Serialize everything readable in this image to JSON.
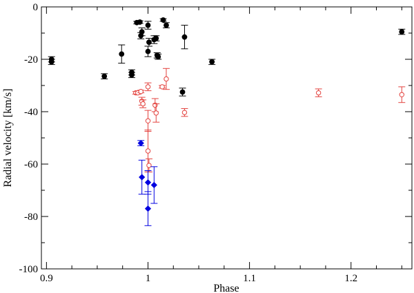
{
  "chart_data": {
    "type": "scatter",
    "title": "",
    "xlabel": "Phase",
    "ylabel": "Radial velocity [km/s]",
    "xlim": [
      0.895,
      1.26
    ],
    "ylim": [
      -100,
      0
    ],
    "xticks": [
      0.9,
      1,
      1.1,
      1.2
    ],
    "xtick_labels": [
      "0.9",
      "1",
      "1.1",
      "1.2"
    ],
    "xminor": 0.025,
    "yticks": [
      -100,
      -80,
      -60,
      -40,
      -20,
      0
    ],
    "ytick_labels": [
      "-100",
      "-80",
      "-60",
      "-40",
      "-20",
      "0"
    ],
    "yminor": 10,
    "grid": false,
    "legend": false,
    "series": [
      {
        "marker": "filled-circle",
        "color": "#000000",
        "points": [
          {
            "x": 0.905,
            "y": -20.0,
            "err": 1.0
          },
          {
            "x": 0.905,
            "y": -21.0,
            "err": 1.0
          },
          {
            "x": 0.957,
            "y": -26.5,
            "err": 1.0
          },
          {
            "x": 0.974,
            "y": -18.0,
            "err": 3.5
          },
          {
            "x": 0.984,
            "y": -25.0,
            "err": 1.0
          },
          {
            "x": 0.984,
            "y": -26.0,
            "err": 1.0
          },
          {
            "x": 0.989,
            "y": -6.0,
            "err": 0.5
          },
          {
            "x": 0.992,
            "y": -5.8,
            "err": 0.5
          },
          {
            "x": 0.993,
            "y": -11.0,
            "err": 1.2
          },
          {
            "x": 0.994,
            "y": -9.5,
            "err": 1.5
          },
          {
            "x": 1.0,
            "y": -7.0,
            "err": 1.5
          },
          {
            "x": 1.0,
            "y": -17.0,
            "err": 2.0
          },
          {
            "x": 1.001,
            "y": -13.5,
            "err": 1.5
          },
          {
            "x": 1.006,
            "y": -12.5,
            "err": 1.5
          },
          {
            "x": 1.008,
            "y": -12.0,
            "err": 1.0
          },
          {
            "x": 1.009,
            "y": -18.5,
            "err": 1.0
          },
          {
            "x": 1.01,
            "y": -19.0,
            "err": 1.0
          },
          {
            "x": 1.015,
            "y": -5.0,
            "err": 0.5
          },
          {
            "x": 1.018,
            "y": -7.0,
            "err": 1.0
          },
          {
            "x": 1.034,
            "y": -32.5,
            "err": 1.5
          },
          {
            "x": 1.036,
            "y": -11.5,
            "err": 4.5
          },
          {
            "x": 1.063,
            "y": -21.0,
            "err": 1.0
          },
          {
            "x": 1.25,
            "y": -9.5,
            "err": 1.0
          }
        ]
      },
      {
        "marker": "open-circle",
        "color": "#e3413d",
        "points": [
          {
            "x": 0.988,
            "y": -32.8,
            "err": 0.5
          },
          {
            "x": 0.99,
            "y": -32.8,
            "err": 0.5
          },
          {
            "x": 0.993,
            "y": -32.3,
            "err": 0.5
          },
          {
            "x": 0.994,
            "y": -36.0,
            "err": 1.5
          },
          {
            "x": 0.995,
            "y": -37.0,
            "err": 1.5
          },
          {
            "x": 1.0,
            "y": -30.5,
            "err": 1.5
          },
          {
            "x": 1.0,
            "y": -43.5,
            "err": 4.0
          },
          {
            "x": 1.0,
            "y": -55.0,
            "err": 8.0
          },
          {
            "x": 1.001,
            "y": -60.5,
            "err": 2.5
          },
          {
            "x": 1.007,
            "y": -37.5,
            "err": 2.5
          },
          {
            "x": 1.008,
            "y": -40.5,
            "err": 3.5
          },
          {
            "x": 1.014,
            "y": -30.5,
            "err": 0.5
          },
          {
            "x": 1.018,
            "y": -27.5,
            "err": 4.0
          },
          {
            "x": 1.036,
            "y": -40.3,
            "err": 1.5
          },
          {
            "x": 1.168,
            "y": -32.8,
            "err": 1.5
          },
          {
            "x": 1.25,
            "y": -33.5,
            "err": 3.0
          }
        ]
      },
      {
        "marker": "filled-diamond",
        "color": "#0000e0",
        "points": [
          {
            "x": 0.993,
            "y": -52.0,
            "err": 1.0
          },
          {
            "x": 0.994,
            "y": -65.0,
            "err": 6.5
          },
          {
            "x": 1.0,
            "y": -67.0,
            "err": 4.5
          },
          {
            "x": 1.0,
            "y": -77.0,
            "err": 6.5
          },
          {
            "x": 1.006,
            "y": -68.0,
            "err": 7.0
          }
        ]
      }
    ]
  }
}
